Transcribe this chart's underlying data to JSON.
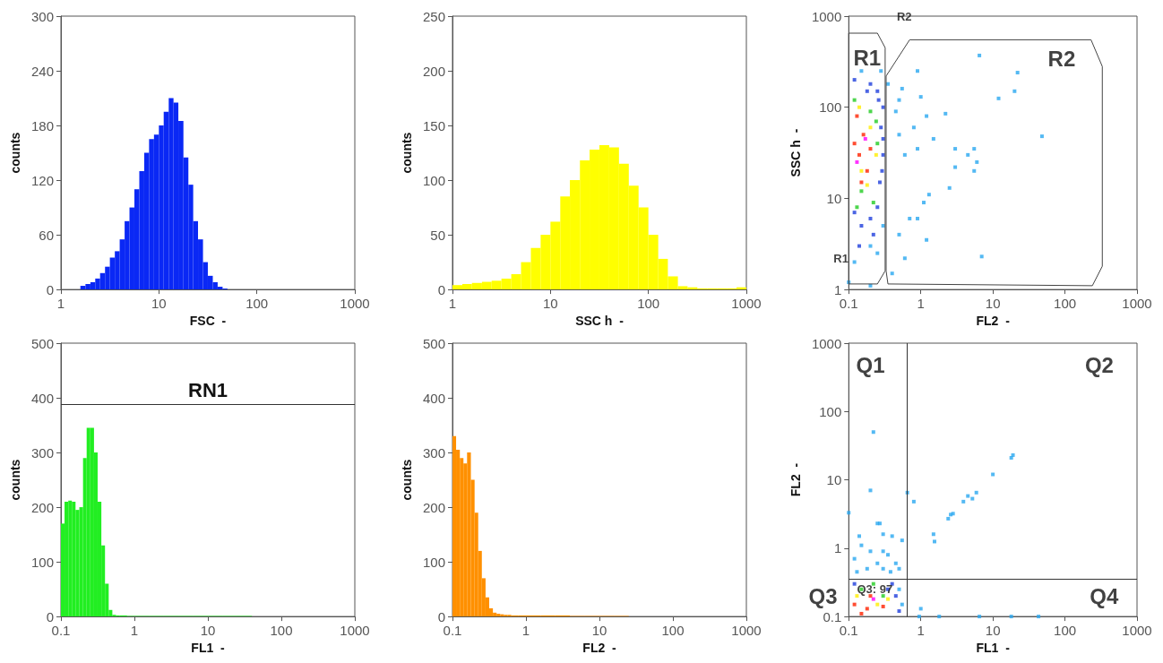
{
  "chart_data": [
    {
      "type": "histogram",
      "xlabel": "FSC  -",
      "ylabel": "counts",
      "log": "x",
      "color": "#0a28f5",
      "xlim": [
        1,
        1000
      ],
      "xticks": [
        1,
        10,
        100,
        1000
      ],
      "ylim": [
        0,
        300
      ],
      "yticks": [
        0,
        60,
        120,
        180,
        240,
        300
      ],
      "bins": [
        1.58,
        1.78,
        2,
        2.24,
        2.51,
        2.82,
        3.16,
        3.55,
        3.98,
        4.47,
        5.01,
        5.62,
        6.31,
        7.08,
        7.94,
        8.91,
        10,
        11.2,
        12.6,
        14.1,
        15.8,
        17.8,
        20,
        22.4,
        25.1,
        28.2,
        31.6,
        35.5,
        39.8,
        44.7,
        50.1
      ],
      "values": [
        4,
        6,
        8,
        12,
        18,
        25,
        35,
        42,
        55,
        75,
        90,
        110,
        130,
        150,
        165,
        170,
        180,
        195,
        210,
        205,
        185,
        145,
        115,
        75,
        55,
        30,
        15,
        8,
        3,
        1
      ]
    },
    {
      "type": "histogram",
      "xlabel": "SSC h  -",
      "ylabel": "counts",
      "log": "x",
      "color": "#ffff00",
      "xlim": [
        1,
        1000
      ],
      "xticks": [
        1,
        10,
        100,
        1000
      ],
      "ylim": [
        0,
        250
      ],
      "yticks": [
        0,
        50,
        100,
        150,
        200,
        250
      ],
      "bins": [
        1,
        1.26,
        1.58,
        2,
        2.51,
        3.16,
        3.98,
        5.01,
        6.31,
        7.94,
        10,
        12.6,
        15.8,
        20,
        25.1,
        31.6,
        39.8,
        50.1,
        63.1,
        79.4,
        100,
        126,
        158,
        200,
        251,
        316,
        398,
        501,
        631,
        794,
        1000
      ],
      "values": [
        4,
        5,
        6,
        7,
        8,
        10,
        14,
        25,
        38,
        50,
        62,
        85,
        100,
        118,
        128,
        132,
        130,
        115,
        95,
        75,
        50,
        28,
        12,
        3,
        2,
        1,
        1,
        1,
        1,
        2
      ]
    },
    {
      "type": "scatter",
      "xlabel": "FL2  -",
      "ylabel": "SSC h  -",
      "log": "xy",
      "marker": "square",
      "xlim": [
        0.1,
        1000
      ],
      "xticks": [
        0.1,
        1,
        10,
        100,
        1000
      ],
      "ylim": [
        1,
        1000
      ],
      "yticks": [
        1,
        10,
        100,
        1000
      ],
      "series": [
        {
          "color": "#29a8f0",
          "x": [
            0.35,
            0.5,
            0.9,
            1,
            1.2,
            2.2,
            0.5,
            0.6,
            0.9,
            1.5,
            3,
            4.5,
            5.5,
            6,
            5.5,
            3,
            2.5,
            1.3,
            1.1,
            0.9,
            0.7,
            0.5,
            1.2,
            0.6,
            6.5,
            12,
            20,
            22,
            48,
            7,
            0.4,
            0.8,
            0.45,
            0.55,
            0.12,
            0.2,
            0.25,
            0.3,
            0.15,
            0.28,
            0.1,
            0.2
          ],
          "values": [
            180,
            120,
            250,
            130,
            80,
            85,
            50,
            30,
            35,
            45,
            35,
            30,
            35,
            25,
            20,
            22,
            13,
            11,
            9,
            6,
            6,
            4,
            3.5,
            2.2,
            370,
            125,
            150,
            240,
            48,
            2.3,
            1.5,
            60,
            90,
            160,
            2,
            3,
            2.5,
            5,
            250,
            250,
            1.2,
            1.1
          ]
        },
        {
          "color": "#1f3fdc",
          "x": [
            0.12,
            0.2,
            0.25,
            0.3,
            0.28,
            0.3,
            0.27,
            0.25,
            0.2,
            0.15,
            0.12,
            0.22,
            0.3,
            0.18,
            0.26,
            0.29,
            0.14
          ],
          "values": [
            200,
            180,
            150,
            100,
            60,
            30,
            15,
            8,
            6,
            5,
            7,
            4,
            45,
            150,
            120,
            20,
            3
          ]
        },
        {
          "color": "#22cc22",
          "x": [
            0.12,
            0.2,
            0.15,
            0.22,
            0.13,
            0.25,
            0.24
          ],
          "values": [
            120,
            90,
            12,
            9,
            8,
            40,
            70
          ]
        },
        {
          "color": "#ffee00",
          "x": [
            0.14,
            0.2,
            0.18,
            0.24,
            0.15
          ],
          "values": [
            100,
            60,
            14,
            30,
            20
          ]
        },
        {
          "color": "#ff2200",
          "x": [
            0.13,
            0.16,
            0.14,
            0.18,
            0.12,
            0.2,
            0.15
          ],
          "values": [
            80,
            50,
            30,
            20,
            40,
            35,
            15
          ]
        },
        {
          "color": "#ff00ff",
          "x": [
            0.17,
            0.13
          ],
          "values": [
            45,
            25
          ]
        }
      ],
      "annotations": [
        "R1",
        "R2",
        "R2",
        "R1"
      ]
    },
    {
      "type": "histogram",
      "xlabel": "FL1  -",
      "ylabel": "counts",
      "log": "x",
      "color": "#22ee22",
      "xlim": [
        0.1,
        1000
      ],
      "xticks": [
        0.1,
        1,
        10,
        100,
        1000
      ],
      "ylim": [
        0,
        500
      ],
      "yticks": [
        0,
        100,
        200,
        300,
        400,
        500
      ],
      "bins": [
        0.1,
        0.112,
        0.126,
        0.141,
        0.158,
        0.178,
        0.2,
        0.224,
        0.251,
        0.282,
        0.316,
        0.355,
        0.398,
        0.447,
        0.501,
        0.562,
        0.631,
        0.794,
        1,
        1.58,
        2.51,
        3.98,
        6.31,
        10,
        15.8,
        25.1,
        39.8
      ],
      "values": [
        170,
        210,
        212,
        210,
        195,
        200,
        290,
        345,
        345,
        300,
        210,
        130,
        60,
        12,
        3,
        2,
        2,
        1,
        1,
        1,
        1,
        1,
        1,
        1,
        1,
        1
      ],
      "ref_lines": [
        {
          "axis": "y",
          "value": 388,
          "label": "RN1",
          "color": "#333333"
        }
      ]
    },
    {
      "type": "histogram",
      "xlabel": "FL2  -",
      "ylabel": "counts",
      "log": "x",
      "color": "#ff9000",
      "xlim": [
        0.1,
        1000
      ],
      "xticks": [
        0.1,
        1,
        10,
        100,
        1000
      ],
      "ylim": [
        0,
        500
      ],
      "yticks": [
        0,
        100,
        200,
        300,
        400,
        500
      ],
      "bins": [
        0.1,
        0.112,
        0.126,
        0.141,
        0.158,
        0.178,
        0.2,
        0.224,
        0.251,
        0.282,
        0.316,
        0.355,
        0.398,
        0.447,
        0.501,
        0.562,
        0.631,
        0.794,
        1,
        1.58,
        2.51,
        3.98,
        6.31,
        10,
        15.8,
        25.1
      ],
      "values": [
        330,
        305,
        290,
        280,
        300,
        250,
        190,
        120,
        70,
        35,
        15,
        7,
        5,
        4,
        3,
        3,
        2,
        2,
        2,
        2,
        2,
        1,
        1,
        1,
        1
      ]
    },
    {
      "type": "scatter",
      "xlabel": "FL1  -",
      "ylabel": "FL2  -",
      "log": "xy",
      "marker": "square",
      "xlim": [
        0.1,
        1000
      ],
      "xticks": [
        0.1,
        1,
        10,
        100,
        1000
      ],
      "ylim": [
        0.1,
        1000
      ],
      "yticks": [
        0.1,
        1,
        10,
        100,
        1000
      ],
      "series": [
        {
          "color": "#29a8f0",
          "x": [
            0.22,
            0.2,
            0.65,
            0.8,
            1.5,
            1.55,
            2.4,
            2.6,
            2.8,
            3.9,
            4.5,
            5.2,
            5.9,
            10,
            18,
            19,
            0.1,
            0.14,
            0.27,
            0.3,
            0.4,
            0.55,
            0.25,
            0.2,
            0.3,
            0.15,
            0.35,
            0.45,
            0.12,
            0.25,
            0.18,
            0.38,
            0.5,
            0.3,
            0.13,
            1,
            0.95,
            1.8,
            6.5,
            18,
            43,
            0.55,
            0.5
          ],
          "values": [
            50,
            7,
            6.5,
            4.8,
            1.6,
            1.25,
            2.7,
            3.1,
            3.2,
            4.8,
            5.8,
            5.3,
            6.5,
            12,
            21,
            23,
            3.3,
            1.5,
            2.3,
            1.6,
            1.5,
            1.3,
            2.3,
            0.9,
            0.9,
            1.1,
            0.8,
            0.6,
            0.7,
            0.6,
            0.5,
            0.45,
            0.5,
            0.5,
            0.45,
            0.13,
            0.1,
            0.1,
            0.1,
            0.1,
            0.1,
            0.15,
            0.25
          ]
        },
        {
          "color": "#1f3fdc",
          "x": [
            0.12,
            0.4,
            0.45,
            0.35,
            0.5
          ],
          "values": [
            0.3,
            0.3,
            0.2,
            0.25,
            0.12
          ]
        },
        {
          "color": "#22cc22",
          "x": [
            0.15,
            0.3,
            0.22
          ],
          "values": [
            0.25,
            0.2,
            0.3
          ]
        },
        {
          "color": "#ffee00",
          "x": [
            0.13,
            0.25,
            0.35
          ],
          "values": [
            0.2,
            0.15,
            0.18
          ]
        },
        {
          "color": "#ff2200",
          "x": [
            0.12,
            0.2,
            0.18,
            0.3,
            0.15
          ],
          "values": [
            0.15,
            0.2,
            0.13,
            0.14,
            0.11
          ]
        },
        {
          "color": "#ff00ff",
          "x": [
            0.22
          ],
          "values": [
            0.18
          ]
        }
      ],
      "ref_lines": [
        {
          "axis": "x",
          "value": 0.65,
          "color": "#333333"
        },
        {
          "axis": "y",
          "value": 0.35,
          "color": "#333333"
        }
      ],
      "annotations": [
        "Q1",
        "Q2",
        "Q3",
        "Q4",
        "Q3: 97"
      ]
    }
  ]
}
